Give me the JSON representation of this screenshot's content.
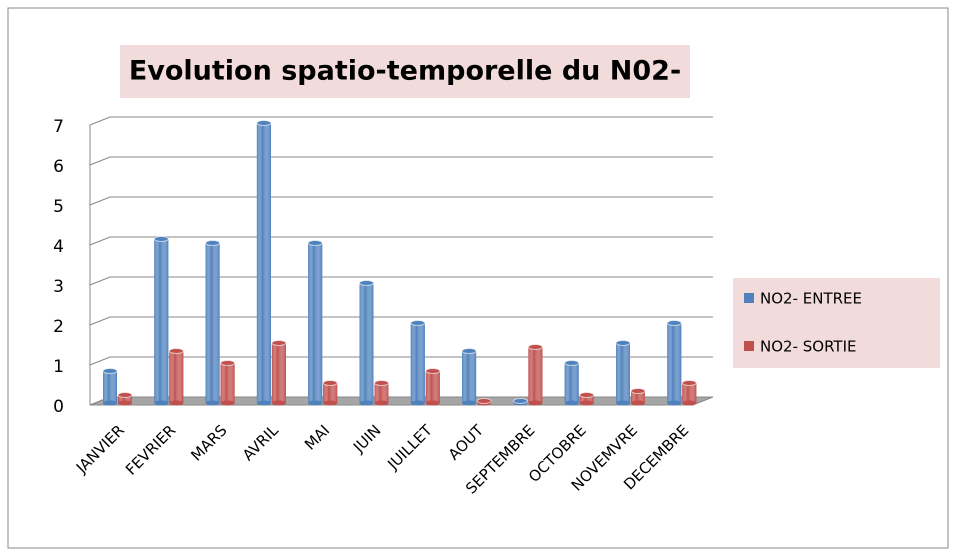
{
  "chart_data": {
    "type": "bar3d",
    "title": "Evolution spatio-temporelle du N02-",
    "categories": [
      "JANVIER",
      "FEVRIER",
      "MARS",
      "AVRIL",
      "MAI",
      "JUIN",
      "JUILLET",
      "AOUT",
      "SEPTEMBRE",
      "OCTOBRE",
      "NOVEMVRE",
      "DECEMBRE"
    ],
    "series": [
      {
        "name": "NO2- ENTREE",
        "color": "#4f81bd",
        "values": [
          0.8,
          4.1,
          4.0,
          7.0,
          4.0,
          3.0,
          2.0,
          1.3,
          0.05,
          1.0,
          1.5,
          2.0
        ]
      },
      {
        "name": "NO2- SORTIE",
        "color": "#c0504d",
        "values": [
          0.2,
          1.3,
          1.0,
          1.5,
          0.5,
          0.5,
          0.8,
          0.05,
          1.4,
          0.2,
          0.3,
          0.5
        ]
      }
    ],
    "ylim": [
      0,
      7
    ],
    "yticks": [
      0,
      1,
      2,
      3,
      4,
      5,
      6,
      7
    ],
    "grid": true,
    "legend": "right"
  }
}
